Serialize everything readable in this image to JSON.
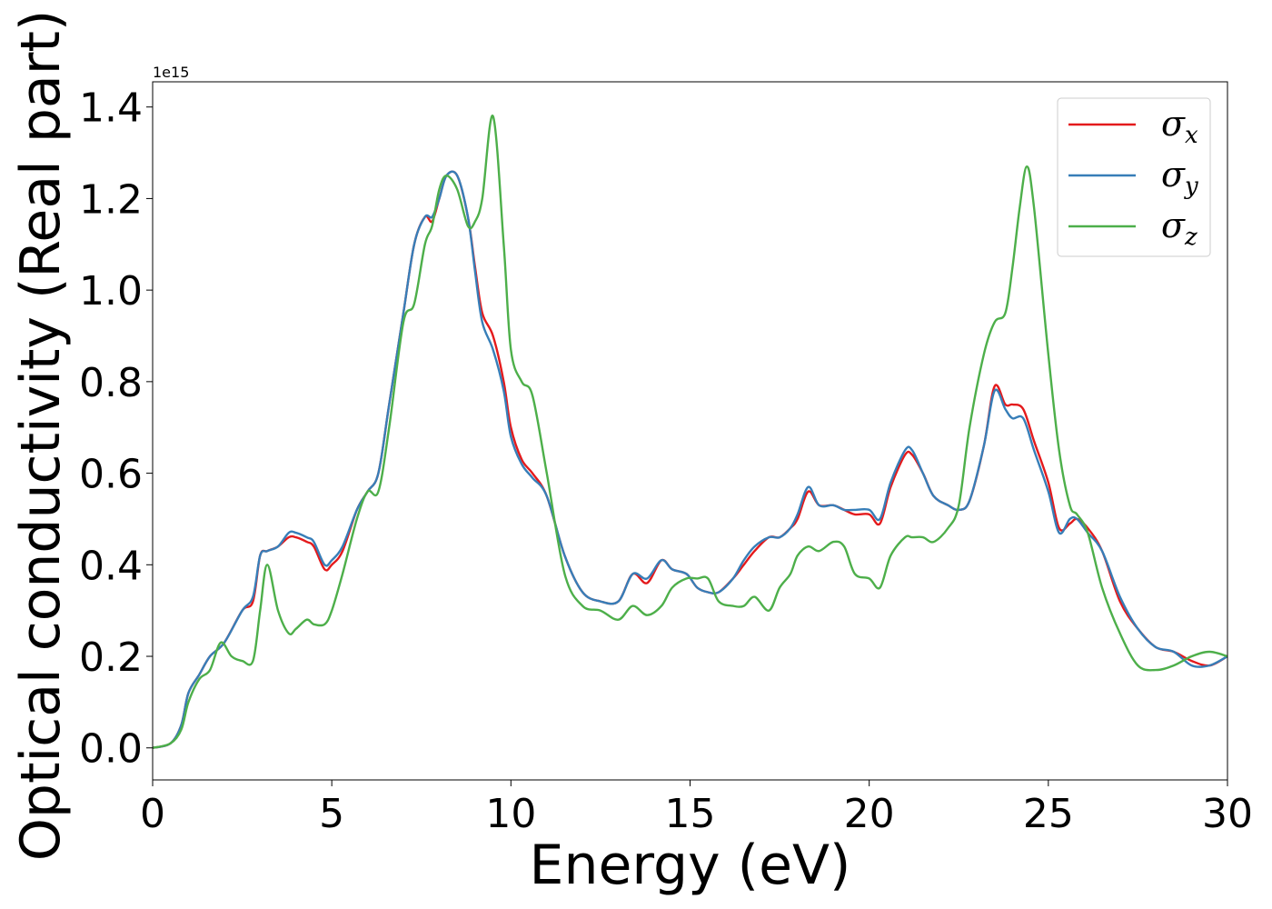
{
  "chart_data": {
    "type": "line",
    "title": "",
    "xlabel": "Energy (eV)",
    "ylabel": "Optical conductivity (Real part)",
    "y_offset_text": "1e15",
    "xlim": [
      0,
      30
    ],
    "ylim": [
      -0.07,
      1.455
    ],
    "xticks": [
      0,
      5,
      10,
      15,
      20,
      25,
      30
    ],
    "xtick_labels": [
      "0",
      "5",
      "10",
      "15",
      "20",
      "25",
      "30"
    ],
    "yticks": [
      0.0,
      0.2,
      0.4,
      0.6,
      0.8,
      1.0,
      1.2,
      1.4
    ],
    "ytick_labels": [
      "0.0",
      "0.2",
      "0.4",
      "0.6",
      "0.8",
      "1.0",
      "1.2",
      "1.4"
    ],
    "grid": false,
    "legend_position": "top-right",
    "series": [
      {
        "name": "σ_x",
        "legend_symbol": "σ",
        "legend_subscript": "x",
        "color": "#e41a1c",
        "x": [
          0,
          0.5,
          0.8,
          1.0,
          1.3,
          1.6,
          2.0,
          2.5,
          2.8,
          3.0,
          3.2,
          3.5,
          3.8,
          4.0,
          4.3,
          4.5,
          4.8,
          5.0,
          5.3,
          5.7,
          6.0,
          6.3,
          6.6,
          7.0,
          7.3,
          7.6,
          7.8,
          8.0,
          8.2,
          8.5,
          8.8,
          9.0,
          9.2,
          9.5,
          9.8,
          10.0,
          10.3,
          10.6,
          11.0,
          11.5,
          12.0,
          12.5,
          13.0,
          13.4,
          13.8,
          14.2,
          14.5,
          14.9,
          15.2,
          15.5,
          15.8,
          16.2,
          16.5,
          16.8,
          17.2,
          17.5,
          17.8,
          18.0,
          18.3,
          18.6,
          19.0,
          19.3,
          19.6,
          20.0,
          20.3,
          20.6,
          21.0,
          21.2,
          21.5,
          21.8,
          22.2,
          22.5,
          22.8,
          23.2,
          23.5,
          23.8,
          24.0,
          24.3,
          24.6,
          25.0,
          25.3,
          25.6,
          25.8,
          26.1,
          26.5,
          27.0,
          27.5,
          28.0,
          28.5,
          29.0,
          29.5,
          30.0
        ],
        "y": [
          0.0,
          0.01,
          0.05,
          0.12,
          0.16,
          0.2,
          0.23,
          0.3,
          0.32,
          0.42,
          0.43,
          0.44,
          0.46,
          0.46,
          0.45,
          0.44,
          0.39,
          0.4,
          0.43,
          0.52,
          0.56,
          0.6,
          0.75,
          0.95,
          1.1,
          1.16,
          1.15,
          1.2,
          1.25,
          1.25,
          1.16,
          1.05,
          0.95,
          0.9,
          0.8,
          0.7,
          0.63,
          0.6,
          0.55,
          0.42,
          0.34,
          0.32,
          0.32,
          0.38,
          0.36,
          0.41,
          0.39,
          0.38,
          0.35,
          0.34,
          0.34,
          0.37,
          0.4,
          0.43,
          0.46,
          0.46,
          0.48,
          0.5,
          0.56,
          0.53,
          0.53,
          0.52,
          0.51,
          0.51,
          0.49,
          0.57,
          0.64,
          0.64,
          0.6,
          0.55,
          0.53,
          0.52,
          0.54,
          0.66,
          0.79,
          0.75,
          0.75,
          0.74,
          0.67,
          0.58,
          0.48,
          0.49,
          0.5,
          0.48,
          0.43,
          0.32,
          0.26,
          0.22,
          0.21,
          0.19,
          0.18,
          0.2
        ]
      },
      {
        "name": "σ_y",
        "legend_symbol": "σ",
        "legend_subscript": "y",
        "color": "#377eb8",
        "x": [
          0,
          0.5,
          0.8,
          1.0,
          1.3,
          1.6,
          2.0,
          2.5,
          2.8,
          3.0,
          3.2,
          3.5,
          3.8,
          4.0,
          4.3,
          4.5,
          4.8,
          5.0,
          5.3,
          5.7,
          6.0,
          6.3,
          6.6,
          7.0,
          7.3,
          7.6,
          7.8,
          8.0,
          8.2,
          8.5,
          8.8,
          9.0,
          9.2,
          9.5,
          9.8,
          10.0,
          10.3,
          10.6,
          11.0,
          11.5,
          12.0,
          12.5,
          13.0,
          13.4,
          13.8,
          14.2,
          14.5,
          14.9,
          15.2,
          15.5,
          15.8,
          16.2,
          16.5,
          16.8,
          17.2,
          17.5,
          17.8,
          18.0,
          18.3,
          18.6,
          19.0,
          19.3,
          19.6,
          20.0,
          20.3,
          20.6,
          21.0,
          21.2,
          21.5,
          21.8,
          22.2,
          22.5,
          22.8,
          23.2,
          23.5,
          23.8,
          24.0,
          24.3,
          24.6,
          25.0,
          25.3,
          25.6,
          25.8,
          26.1,
          26.5,
          27.0,
          27.5,
          28.0,
          28.5,
          29.0,
          29.5,
          30.0
        ],
        "y": [
          0.0,
          0.01,
          0.05,
          0.12,
          0.16,
          0.2,
          0.23,
          0.3,
          0.33,
          0.42,
          0.43,
          0.44,
          0.47,
          0.47,
          0.46,
          0.45,
          0.4,
          0.41,
          0.44,
          0.52,
          0.56,
          0.6,
          0.75,
          0.95,
          1.1,
          1.16,
          1.16,
          1.2,
          1.25,
          1.25,
          1.16,
          1.04,
          0.93,
          0.87,
          0.78,
          0.68,
          0.62,
          0.59,
          0.55,
          0.42,
          0.34,
          0.32,
          0.32,
          0.38,
          0.37,
          0.41,
          0.39,
          0.38,
          0.35,
          0.34,
          0.34,
          0.37,
          0.41,
          0.44,
          0.46,
          0.46,
          0.48,
          0.51,
          0.57,
          0.53,
          0.53,
          0.52,
          0.52,
          0.52,
          0.5,
          0.58,
          0.65,
          0.65,
          0.6,
          0.55,
          0.53,
          0.52,
          0.54,
          0.66,
          0.78,
          0.74,
          0.72,
          0.72,
          0.65,
          0.56,
          0.47,
          0.5,
          0.5,
          0.47,
          0.43,
          0.33,
          0.26,
          0.22,
          0.21,
          0.18,
          0.18,
          0.2
        ]
      },
      {
        "name": "σ_z",
        "legend_symbol": "σ",
        "legend_subscript": "z",
        "color": "#4daf4a",
        "x": [
          0,
          0.5,
          0.8,
          1.0,
          1.3,
          1.6,
          1.9,
          2.2,
          2.5,
          2.8,
          3.0,
          3.2,
          3.5,
          3.8,
          4.0,
          4.3,
          4.5,
          4.8,
          5.0,
          5.3,
          5.7,
          6.0,
          6.3,
          6.6,
          7.0,
          7.3,
          7.6,
          7.8,
          8.0,
          8.2,
          8.5,
          8.8,
          9.0,
          9.2,
          9.5,
          9.8,
          10.0,
          10.3,
          10.6,
          11.0,
          11.5,
          12.0,
          12.5,
          13.0,
          13.4,
          13.8,
          14.2,
          14.5,
          14.9,
          15.2,
          15.5,
          15.8,
          16.2,
          16.5,
          16.8,
          17.2,
          17.5,
          17.8,
          18.0,
          18.3,
          18.6,
          19.0,
          19.3,
          19.6,
          20.0,
          20.3,
          20.6,
          21.0,
          21.2,
          21.5,
          21.8,
          22.2,
          22.5,
          22.8,
          23.2,
          23.5,
          23.8,
          24.0,
          24.2,
          24.4,
          24.6,
          25.0,
          25.3,
          25.6,
          25.8,
          26.1,
          26.5,
          27.0,
          27.5,
          28.0,
          28.5,
          29.0,
          29.5,
          30.0
        ],
        "y": [
          0.0,
          0.01,
          0.04,
          0.1,
          0.15,
          0.17,
          0.23,
          0.2,
          0.19,
          0.19,
          0.3,
          0.4,
          0.3,
          0.25,
          0.26,
          0.28,
          0.27,
          0.27,
          0.3,
          0.38,
          0.5,
          0.56,
          0.56,
          0.7,
          0.93,
          0.97,
          1.1,
          1.14,
          1.22,
          1.25,
          1.22,
          1.14,
          1.15,
          1.2,
          1.38,
          1.1,
          0.87,
          0.8,
          0.77,
          0.6,
          0.38,
          0.31,
          0.3,
          0.28,
          0.31,
          0.29,
          0.31,
          0.35,
          0.37,
          0.37,
          0.37,
          0.32,
          0.31,
          0.31,
          0.33,
          0.3,
          0.35,
          0.38,
          0.42,
          0.44,
          0.43,
          0.45,
          0.44,
          0.38,
          0.37,
          0.35,
          0.42,
          0.46,
          0.46,
          0.46,
          0.45,
          0.48,
          0.53,
          0.7,
          0.86,
          0.93,
          0.95,
          1.05,
          1.18,
          1.27,
          1.18,
          0.86,
          0.65,
          0.53,
          0.51,
          0.47,
          0.35,
          0.25,
          0.18,
          0.17,
          0.18,
          0.2,
          0.21,
          0.2
        ]
      }
    ]
  }
}
